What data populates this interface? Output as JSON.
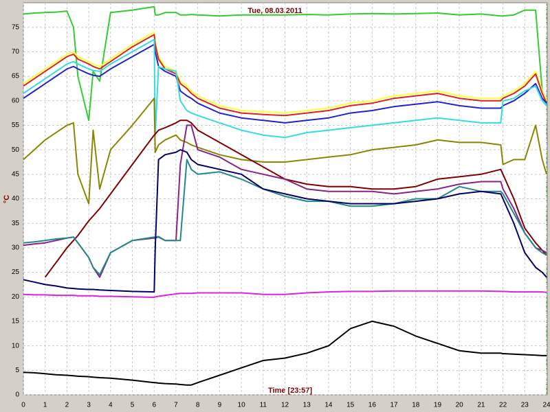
{
  "chart_data": {
    "type": "line",
    "title": "Tue, 08.03.2011",
    "y_label": "°C",
    "x_label": "Time [23:57]",
    "x": [
      0,
      0.5,
      1,
      1.5,
      2,
      2.3,
      2.5,
      3,
      3.2,
      3.5,
      4,
      5,
      6,
      6.05,
      6.2,
      6.5,
      7,
      7.2,
      7.5,
      7.7,
      8,
      9,
      10,
      11,
      12,
      13,
      14,
      15,
      16,
      17,
      18,
      19,
      20,
      21,
      21.9,
      22,
      22.5,
      23,
      23.5,
      23.8,
      24
    ],
    "xlim": [
      0,
      24
    ],
    "xticks": [
      0,
      1,
      2,
      3,
      4,
      5,
      6,
      7,
      8,
      9,
      10,
      11,
      12,
      13,
      14,
      15,
      16,
      17,
      18,
      19,
      20,
      21,
      22,
      23,
      24
    ],
    "ylim": [
      0,
      80
    ],
    "yticks": [
      0,
      5,
      10,
      15,
      20,
      25,
      30,
      35,
      40,
      45,
      50,
      55,
      60,
      65,
      70,
      75
    ],
    "grid": true,
    "series": [
      {
        "color": "#33cc33",
        "values": [
          77.7,
          77.9,
          78,
          78.1,
          78.3,
          75,
          65,
          56,
          66,
          64,
          78,
          78.5,
          79.2,
          77.5,
          77.5,
          78,
          78,
          77.5,
          77.5,
          77.6,
          77.5,
          77.3,
          77.5,
          77.5,
          77.5,
          77.6,
          77.5,
          77.7,
          77.8,
          77.7,
          77.8,
          77.9,
          77.5,
          77.7,
          77.3,
          77.3,
          77.5,
          78.5,
          78.5,
          62,
          60
        ]
      },
      {
        "color": "#ffff33",
        "values": [
          63.5,
          65,
          66.5,
          68,
          69.5,
          70,
          69,
          68,
          67.5,
          67,
          68.5,
          71.5,
          74,
          72,
          69,
          67,
          66,
          64,
          63,
          62,
          61,
          59,
          58,
          57.8,
          57.5,
          58,
          58.5,
          59.5,
          60,
          61,
          61.5,
          62,
          61,
          60.5,
          60.5,
          61,
          62,
          63.5,
          66,
          62,
          60
        ]
      },
      {
        "color": "#dd2222",
        "values": [
          63,
          64.5,
          66,
          67.5,
          69,
          69.5,
          68.5,
          67.5,
          67,
          66.5,
          68,
          71,
          73.5,
          71.5,
          68.5,
          66.5,
          65.5,
          63.5,
          62.5,
          61.5,
          60.5,
          58.5,
          57.5,
          57.2,
          57,
          57.5,
          58,
          59,
          59.5,
          60.5,
          61,
          61.5,
          60.5,
          60,
          60,
          60.5,
          61.5,
          63,
          65.5,
          61.5,
          59.5
        ]
      },
      {
        "color": "#2222cc",
        "values": [
          60.5,
          62,
          63.5,
          65,
          66.5,
          67,
          66.5,
          65.5,
          65.2,
          65,
          66.5,
          69,
          71.5,
          70,
          67,
          66,
          65,
          62,
          61,
          60.5,
          59.5,
          57.5,
          56.5,
          56,
          55.5,
          56,
          56.5,
          57.5,
          58,
          58.8,
          59.3,
          59.8,
          59,
          58.5,
          58.5,
          59,
          60,
          61.5,
          63.5,
          60.5,
          59.5
        ]
      },
      {
        "color": "#33dddd",
        "values": [
          61.5,
          63,
          64.5,
          66,
          67.5,
          68,
          67.5,
          66.5,
          66.2,
          66,
          67.5,
          70,
          72.5,
          53,
          67,
          66.5,
          66,
          60,
          58,
          57.5,
          57,
          55.5,
          54,
          53,
          52.5,
          53.5,
          54,
          54.5,
          55,
          55.5,
          56,
          56.5,
          56,
          55.5,
          55.5,
          60,
          60.5,
          62,
          63,
          60,
          59
        ]
      },
      {
        "color": "#888800",
        "values": [
          48,
          50,
          52,
          53.5,
          55,
          55.5,
          45,
          39,
          54,
          42,
          50,
          55,
          60.5,
          49.5,
          51,
          52,
          53,
          52,
          51.5,
          51,
          50.5,
          49,
          48,
          47.5,
          47.5,
          48,
          48.5,
          49,
          50,
          50.5,
          51,
          52,
          51.5,
          51.5,
          51,
          47,
          48,
          48,
          55,
          48,
          45
        ]
      },
      {
        "color": "#800000",
        "values": [
          null,
          null,
          24,
          27,
          30,
          31.5,
          32.5,
          35.5,
          36.5,
          38,
          41,
          47,
          53,
          53.2,
          54,
          54.5,
          55.5,
          56,
          56,
          55.5,
          54,
          51.5,
          49,
          46.5,
          44,
          43,
          42.5,
          42.5,
          42,
          42,
          42.5,
          44,
          44.5,
          45,
          46,
          45,
          40,
          34,
          31,
          29.5,
          28.5
        ]
      },
      {
        "color": "#882288",
        "values": [
          30.5,
          30.8,
          31,
          31.5,
          32,
          32.2,
          31,
          28,
          26,
          24,
          29,
          31.5,
          32,
          32,
          32.2,
          31.5,
          31.5,
          47,
          55,
          55,
          50,
          48.5,
          46,
          45,
          44,
          42,
          41.5,
          41.5,
          41.5,
          41,
          41.5,
          42,
          43,
          43.5,
          43.5,
          42,
          38,
          33,
          30,
          29.5,
          29
        ]
      },
      {
        "color": "#228888",
        "values": [
          31,
          31.2,
          31.5,
          31.8,
          32,
          32.2,
          31,
          28,
          26,
          24.5,
          29,
          31.5,
          32.2,
          32.2,
          32.3,
          31.5,
          31.5,
          31.5,
          48,
          46,
          45,
          45.5,
          44,
          42,
          40.5,
          39.5,
          39.5,
          38.5,
          38.5,
          39,
          40,
          40,
          42.5,
          41.5,
          41.5,
          41,
          37,
          33,
          30,
          29,
          28.5
        ]
      },
      {
        "color": "#000066",
        "values": [
          23.5,
          23,
          22.5,
          22.2,
          21.8,
          21.7,
          21.6,
          21.5,
          21.5,
          21.4,
          21.3,
          21.1,
          21,
          30,
          48,
          49,
          49.5,
          50,
          49.5,
          48,
          47,
          46,
          45,
          42,
          41,
          40,
          39.5,
          39,
          39,
          39,
          39.5,
          40,
          41,
          41.5,
          41,
          40,
          35,
          29,
          26,
          25,
          24
        ]
      },
      {
        "color": "#dd22dd",
        "values": [
          20.5,
          20.4,
          20.4,
          20.3,
          20.3,
          20.3,
          20.2,
          20.2,
          20.2,
          20.1,
          20.1,
          20,
          19.9,
          20,
          20.1,
          20.3,
          20.6,
          20.7,
          20.7,
          20.7,
          20.8,
          20.8,
          20.8,
          20.5,
          20.5,
          20.8,
          21,
          21.1,
          21.1,
          21.2,
          21.2,
          21.2,
          21.2,
          21.2,
          21.1,
          21.1,
          21,
          21,
          21,
          21,
          20.9
        ]
      },
      {
        "color": "#000000",
        "values": [
          4.6,
          4.5,
          4.3,
          4.1,
          4,
          3.9,
          3.8,
          3.7,
          3.6,
          3.5,
          3.4,
          3,
          2.5,
          2.5,
          2.4,
          2.3,
          2.2,
          2.1,
          2,
          2,
          2.5,
          4,
          5.5,
          7,
          7.5,
          8.5,
          10,
          13.5,
          15,
          14,
          12,
          10.5,
          9,
          8.5,
          8.5,
          8.4,
          8.3,
          8.2,
          8.1,
          8,
          8
        ]
      }
    ]
  }
}
